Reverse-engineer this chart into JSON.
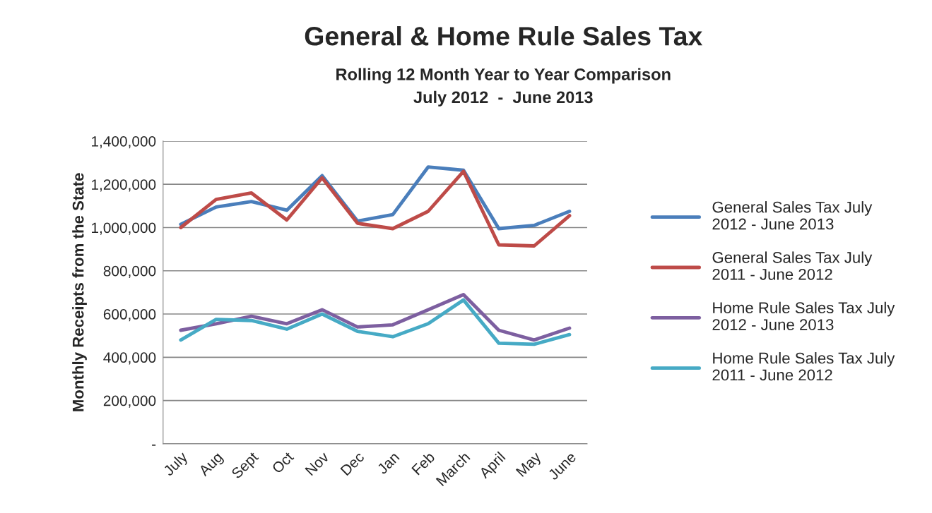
{
  "chart_data": {
    "type": "line",
    "title": "General & Home Rule Sales Tax",
    "subtitle": "Rolling 12 Month Year to Year Comparison\nJuly 2012  -  June 2013",
    "ylabel": "Monthly Receipts from the State",
    "categories": [
      "July",
      "Aug",
      "Sept",
      "Oct",
      "Nov",
      "Dec",
      "Jan",
      "Feb",
      "March",
      "April",
      "May",
      "June"
    ],
    "series": [
      {
        "name": "General Sales Tax July 2012 - June 2013",
        "color": "#4a7ebb",
        "values": [
          1015000,
          1095000,
          1120000,
          1080000,
          1240000,
          1030000,
          1060000,
          1280000,
          1265000,
          995000,
          1010000,
          1075000
        ]
      },
      {
        "name": "General Sales Tax July 2011 - June 2012",
        "color": "#be4b48",
        "values": [
          1000000,
          1130000,
          1160000,
          1035000,
          1230000,
          1020000,
          995000,
          1075000,
          1260000,
          920000,
          915000,
          1055000
        ]
      },
      {
        "name": "Home Rule Sales Tax July 2012 - June 2013",
        "color": "#7d5fa0",
        "values": [
          525000,
          555000,
          590000,
          555000,
          620000,
          540000,
          550000,
          620000,
          690000,
          525000,
          480000,
          535000
        ]
      },
      {
        "name": "Home Rule Sales Tax July 2011 - June 2012",
        "color": "#46aac5",
        "values": [
          480000,
          575000,
          570000,
          530000,
          600000,
          520000,
          495000,
          555000,
          665000,
          465000,
          460000,
          505000
        ]
      }
    ],
    "ylim": [
      0,
      1400000
    ],
    "yticks": [
      {
        "value": 0,
        "label": "-"
      },
      {
        "value": 200000,
        "label": "200,000"
      },
      {
        "value": 400000,
        "label": "400,000"
      },
      {
        "value": 600000,
        "label": "600,000"
      },
      {
        "value": 800000,
        "label": "800,000"
      },
      {
        "value": 1000000,
        "label": "1,000,000"
      },
      {
        "value": 1200000,
        "label": "1,200,000"
      },
      {
        "value": 1400000,
        "label": "1,400,000"
      }
    ],
    "grid": "y",
    "legend": "right",
    "marker": "none",
    "line_style": "solid"
  }
}
